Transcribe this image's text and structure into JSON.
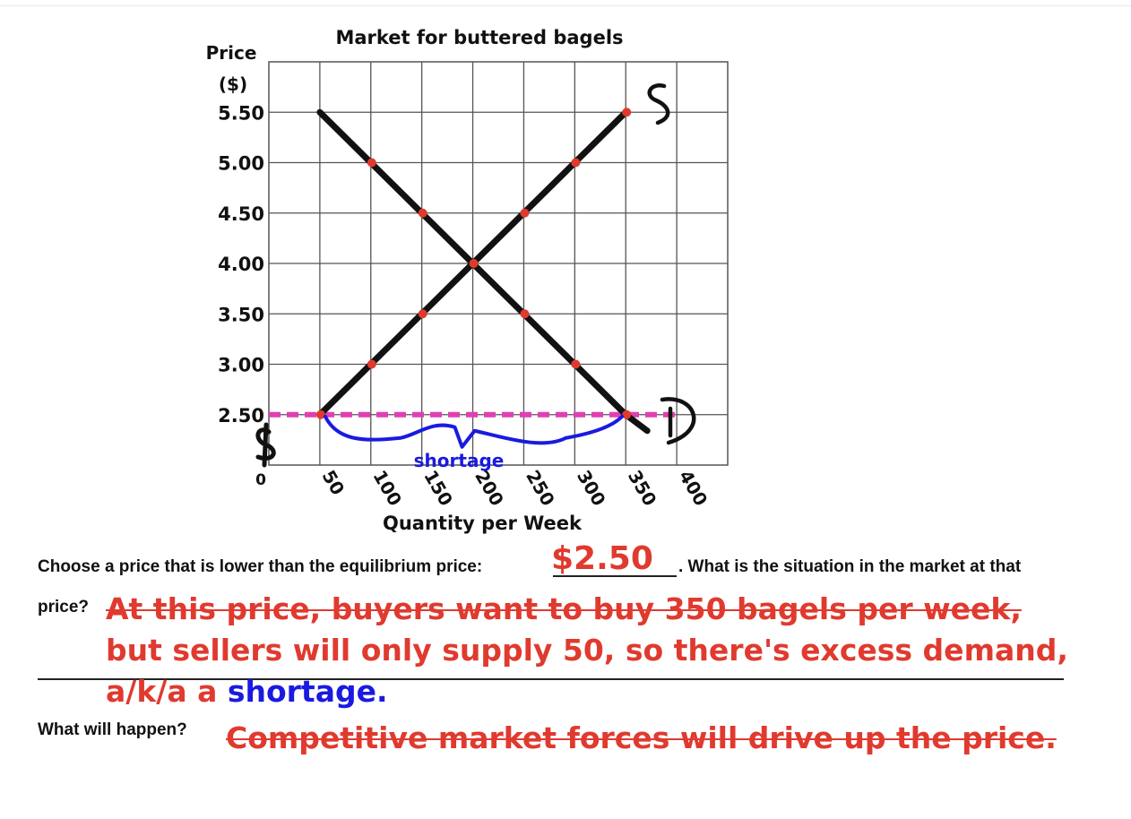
{
  "chart_data": {
    "type": "line",
    "title": "Market for buttered bagels",
    "ylabel_line1": "Price",
    "ylabel_line2": "($)",
    "xlabel": "Quantity per Week",
    "origin_label": "0",
    "x_ticks": [
      "50",
      "100",
      "150",
      "200",
      "250",
      "300",
      "350",
      "400"
    ],
    "y_ticks": [
      "5.50",
      "5.00",
      "4.50",
      "4.00",
      "3.50",
      "3.00",
      "2.50"
    ],
    "xlim": [
      0,
      450
    ],
    "ylim": [
      2.0,
      6.0
    ],
    "grid": true,
    "series": [
      {
        "name": "S",
        "color": "#111111",
        "points": [
          [
            50,
            2.5
          ],
          [
            100,
            3.0
          ],
          [
            150,
            3.5
          ],
          [
            200,
            4.0
          ],
          [
            250,
            4.5
          ],
          [
            300,
            5.0
          ],
          [
            350,
            5.5
          ]
        ]
      },
      {
        "name": "D",
        "color": "#111111",
        "points": [
          [
            50,
            5.5
          ],
          [
            100,
            5.0
          ],
          [
            150,
            4.5
          ],
          [
            200,
            4.0
          ],
          [
            250,
            3.5
          ],
          [
            300,
            3.0
          ],
          [
            350,
            2.5
          ]
        ]
      }
    ],
    "markers": {
      "color": "#e03a2f",
      "points": [
        [
          50,
          2.5
        ],
        [
          100,
          3.0
        ],
        [
          150,
          3.5
        ],
        [
          200,
          4.0
        ],
        [
          250,
          4.5
        ],
        [
          300,
          5.0
        ],
        [
          350,
          5.5
        ],
        [
          100,
          5.0
        ],
        [
          150,
          4.5
        ],
        [
          250,
          3.5
        ],
        [
          300,
          3.0
        ],
        [
          350,
          2.5
        ]
      ]
    },
    "price_line": {
      "y": 2.5,
      "color": "#e040b0"
    },
    "shortage_label": "shortage",
    "shortage_color": "#1a1ae0"
  },
  "questions": {
    "q1_prefix": "Choose a price that is lower than the equilibrium price:",
    "q1_answer": "$2.50",
    "q1_suffix": ". What is the situation in the market at that",
    "q2_prefix": "price?",
    "q2_answer_line1": "At this price, buyers want to buy 350 bagels per week,",
    "q2_answer_line2": "but sellers will only supply 50, so there's excess demand,",
    "q2_answer_line3_a": "a/k/a a ",
    "q2_answer_line3_b": "shortage.",
    "q3_prefix": "What will happen?",
    "q3_answer": "Competitive market forces will drive up the price."
  },
  "colors": {
    "answer_red": "#e03a2f",
    "shortage_blue": "#1a1ae0",
    "price_line_pink": "#e040b0"
  }
}
